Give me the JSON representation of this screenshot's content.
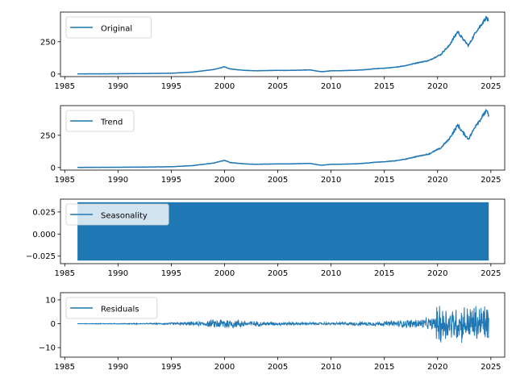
{
  "colors": {
    "series": "#1f77b4",
    "axes": "#000000",
    "legend_border": "#cccccc"
  },
  "chart_data": [
    {
      "type": "line",
      "series": [
        {
          "name": "Original",
          "x": [
            1986.2,
            1990,
            1995,
            1997,
            1998,
            1999,
            1999.7,
            2000,
            2000.5,
            2001,
            2002,
            2003,
            2004,
            2005,
            2006,
            2007,
            2008,
            2008.9,
            2009.2,
            2010,
            2011,
            2012,
            2013,
            2014,
            2015,
            2016,
            2017,
            2018,
            2018.9,
            2019.2,
            2020,
            2020.3,
            2020.7,
            2021,
            2021.9,
            2022.2,
            2022.6,
            2022.9,
            2023.3,
            2023.6,
            2024,
            2024.4,
            2024.6,
            2024.8
          ],
          "y": [
            1,
            2,
            6,
            15,
            25,
            35,
            50,
            55,
            40,
            35,
            28,
            25,
            27,
            28,
            28,
            30,
            32,
            20,
            18,
            25,
            26,
            28,
            32,
            40,
            45,
            52,
            65,
            85,
            100,
            105,
            140,
            150,
            190,
            210,
            330,
            290,
            250,
            220,
            280,
            330,
            370,
            420,
            440,
            400
          ]
        }
      ],
      "xlim": [
        1984.6,
        2026.3
      ],
      "ylim": [
        -20,
        480
      ],
      "xticks": [
        "1985",
        "1990",
        "1995",
        "2000",
        "2005",
        "2010",
        "2015",
        "2020",
        "2025"
      ],
      "yticks": [
        "0",
        "250"
      ],
      "legend": "top-left",
      "grid": false
    },
    {
      "type": "line",
      "series": [
        {
          "name": "Trend",
          "x": [
            1986.2,
            1990,
            1995,
            1997,
            1998,
            1999,
            1999.7,
            2000,
            2000.5,
            2001,
            2002,
            2003,
            2004,
            2005,
            2006,
            2007,
            2008,
            2008.9,
            2009.2,
            2010,
            2011,
            2012,
            2013,
            2014,
            2015,
            2016,
            2017,
            2018,
            2018.9,
            2019.2,
            2020,
            2020.3,
            2020.7,
            2021,
            2021.9,
            2022.2,
            2022.6,
            2022.9,
            2023.3,
            2023.6,
            2024,
            2024.4,
            2024.6,
            2024.8
          ],
          "y": [
            1,
            2,
            6,
            15,
            25,
            35,
            50,
            55,
            40,
            35,
            28,
            25,
            27,
            28,
            28,
            30,
            32,
            20,
            18,
            25,
            26,
            28,
            32,
            40,
            45,
            52,
            65,
            85,
            100,
            105,
            140,
            150,
            190,
            210,
            330,
            290,
            250,
            220,
            280,
            330,
            370,
            420,
            440,
            400
          ]
        }
      ],
      "xlim": [
        1984.6,
        2026.3
      ],
      "ylim": [
        -20,
        480
      ],
      "xticks": [
        "1985",
        "1990",
        "1995",
        "2000",
        "2005",
        "2010",
        "2015",
        "2020",
        "2025"
      ],
      "yticks": [
        "0",
        "250"
      ],
      "legend": "top-left",
      "grid": false
    },
    {
      "type": "area",
      "series": [
        {
          "name": "Seasonality",
          "x_range": [
            1986.2,
            2024.8
          ],
          "y_band": [
            -0.03,
            0.036
          ]
        }
      ],
      "xlim": [
        1984.6,
        2026.3
      ],
      "ylim": [
        -0.0335,
        0.0395
      ],
      "xticks": [
        "1985",
        "1990",
        "1995",
        "2000",
        "2005",
        "2010",
        "2015",
        "2020",
        "2025"
      ],
      "yticks": [
        "0.025",
        "0.000",
        "−0.025"
      ],
      "legend": "top-left",
      "grid": false
    },
    {
      "type": "line",
      "series": [
        {
          "name": "Residuals",
          "x": [
            1986.2,
            1994,
            1998,
            2000,
            2002,
            2005,
            2010,
            2015,
            2018,
            2019.5,
            2020.3,
            2021,
            2022,
            2023,
            2023.8,
            2024.8
          ],
          "amplitude": [
            0.1,
            0.3,
            1.2,
            3,
            1.5,
            0.8,
            0.6,
            1.2,
            2.5,
            3,
            12,
            8,
            9,
            9,
            10,
            10
          ]
        }
      ],
      "xlim": [
        1984.6,
        2026.3
      ],
      "ylim": [
        -14,
        13
      ],
      "xticks": [
        "1985",
        "1990",
        "1995",
        "2000",
        "2005",
        "2010",
        "2015",
        "2020",
        "2025"
      ],
      "yticks": [
        "10",
        "0",
        "−10"
      ],
      "legend": "top-left",
      "grid": false
    }
  ]
}
